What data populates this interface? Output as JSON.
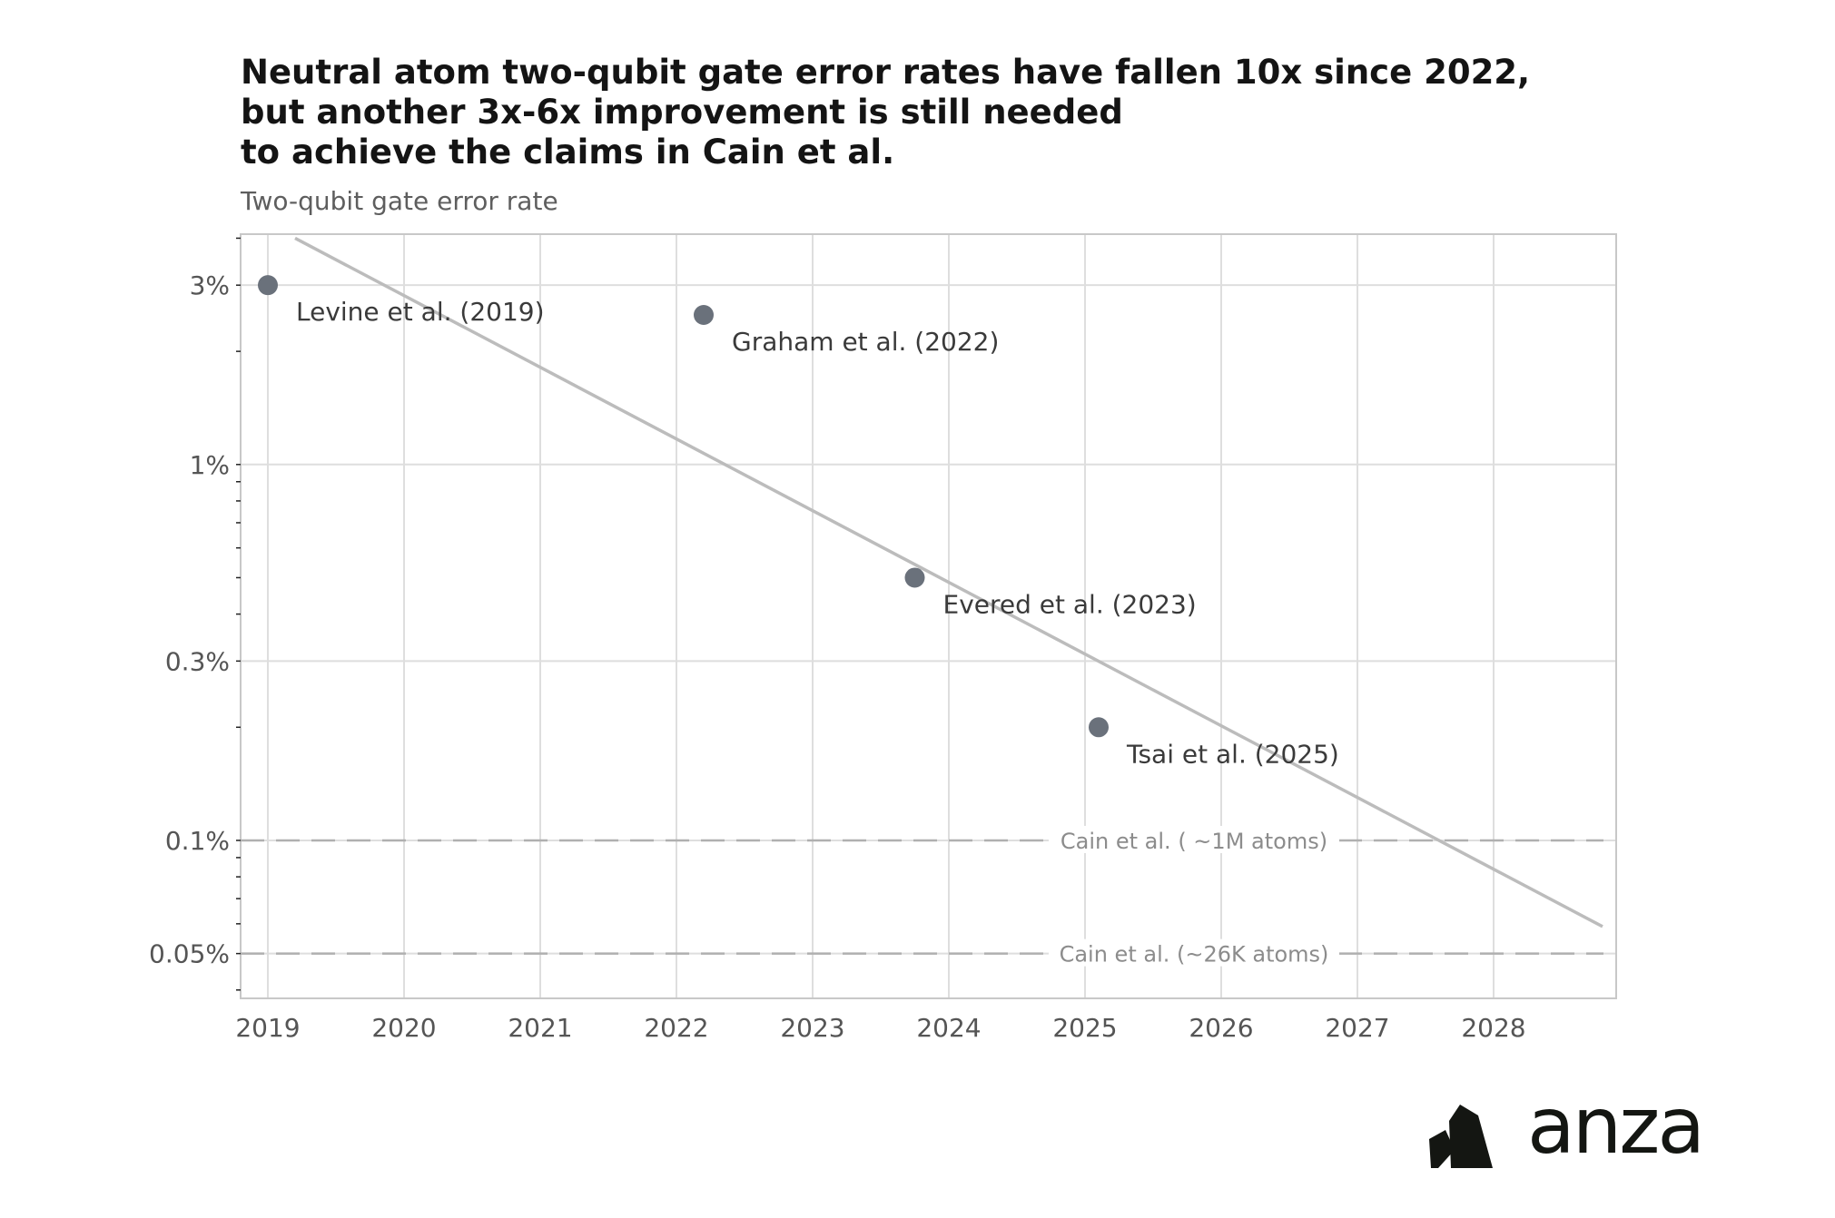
{
  "chart_data": {
    "type": "scatter",
    "title_lines": [
      "Neutral atom two-qubit gate error rates have fallen 10x since 2022,",
      "but another 3x-6x improvement is still needed",
      "to achieve the claims in Cain et al."
    ],
    "subtitle": "Two-qubit gate error rate",
    "xlabel": "",
    "ylabel": "",
    "x_scale": "linear",
    "y_scale": "log",
    "xlim": [
      2018.8,
      2028.9
    ],
    "ylim": [
      0.00038,
      0.041
    ],
    "x_ticks": [
      2019,
      2020,
      2021,
      2022,
      2023,
      2024,
      2025,
      2026,
      2027,
      2028
    ],
    "x_tick_labels": [
      "2019",
      "2020",
      "2021",
      "2022",
      "2023",
      "2024",
      "2025",
      "2026",
      "2027",
      "2028"
    ],
    "y_ticks": [
      0.0005,
      0.001,
      0.003,
      0.01,
      0.03
    ],
    "y_tick_labels": [
      "0.05%",
      "0.1%",
      "0.3%",
      "1%",
      "3%"
    ],
    "grid": true,
    "points": [
      {
        "x": 2019.0,
        "y": 0.03,
        "label": "Levine et al. (2019)"
      },
      {
        "x": 2022.2,
        "y": 0.025,
        "label": "Graham et al. (2022)"
      },
      {
        "x": 2023.75,
        "y": 0.005,
        "label": "Evered et al. (2023)"
      },
      {
        "x": 2025.1,
        "y": 0.002,
        "label": "Tsai et al. (2025)"
      }
    ],
    "trend_line": {
      "x": [
        2019.2,
        2028.8
      ],
      "y": [
        0.04,
        0.00059
      ]
    },
    "reference_lines": [
      {
        "y": 0.001,
        "label": "Cain et al. ( ~1M atoms)",
        "label_x": 2025.8
      },
      {
        "y": 0.0005,
        "label": "Cain et al. (~26K atoms)",
        "label_x": 2025.8
      }
    ],
    "colors": {
      "points": "#6a717b",
      "trend": "#bcbcbc",
      "reference": "#b0b0b0",
      "reference_label": "#8c8c8c",
      "grid": "#dedede",
      "axis": "#c8c8c8",
      "tick_label": "#555555",
      "point_label": "#3a3a3a"
    }
  },
  "branding": {
    "logo_text": "anza",
    "logo_color": "#141612"
  }
}
